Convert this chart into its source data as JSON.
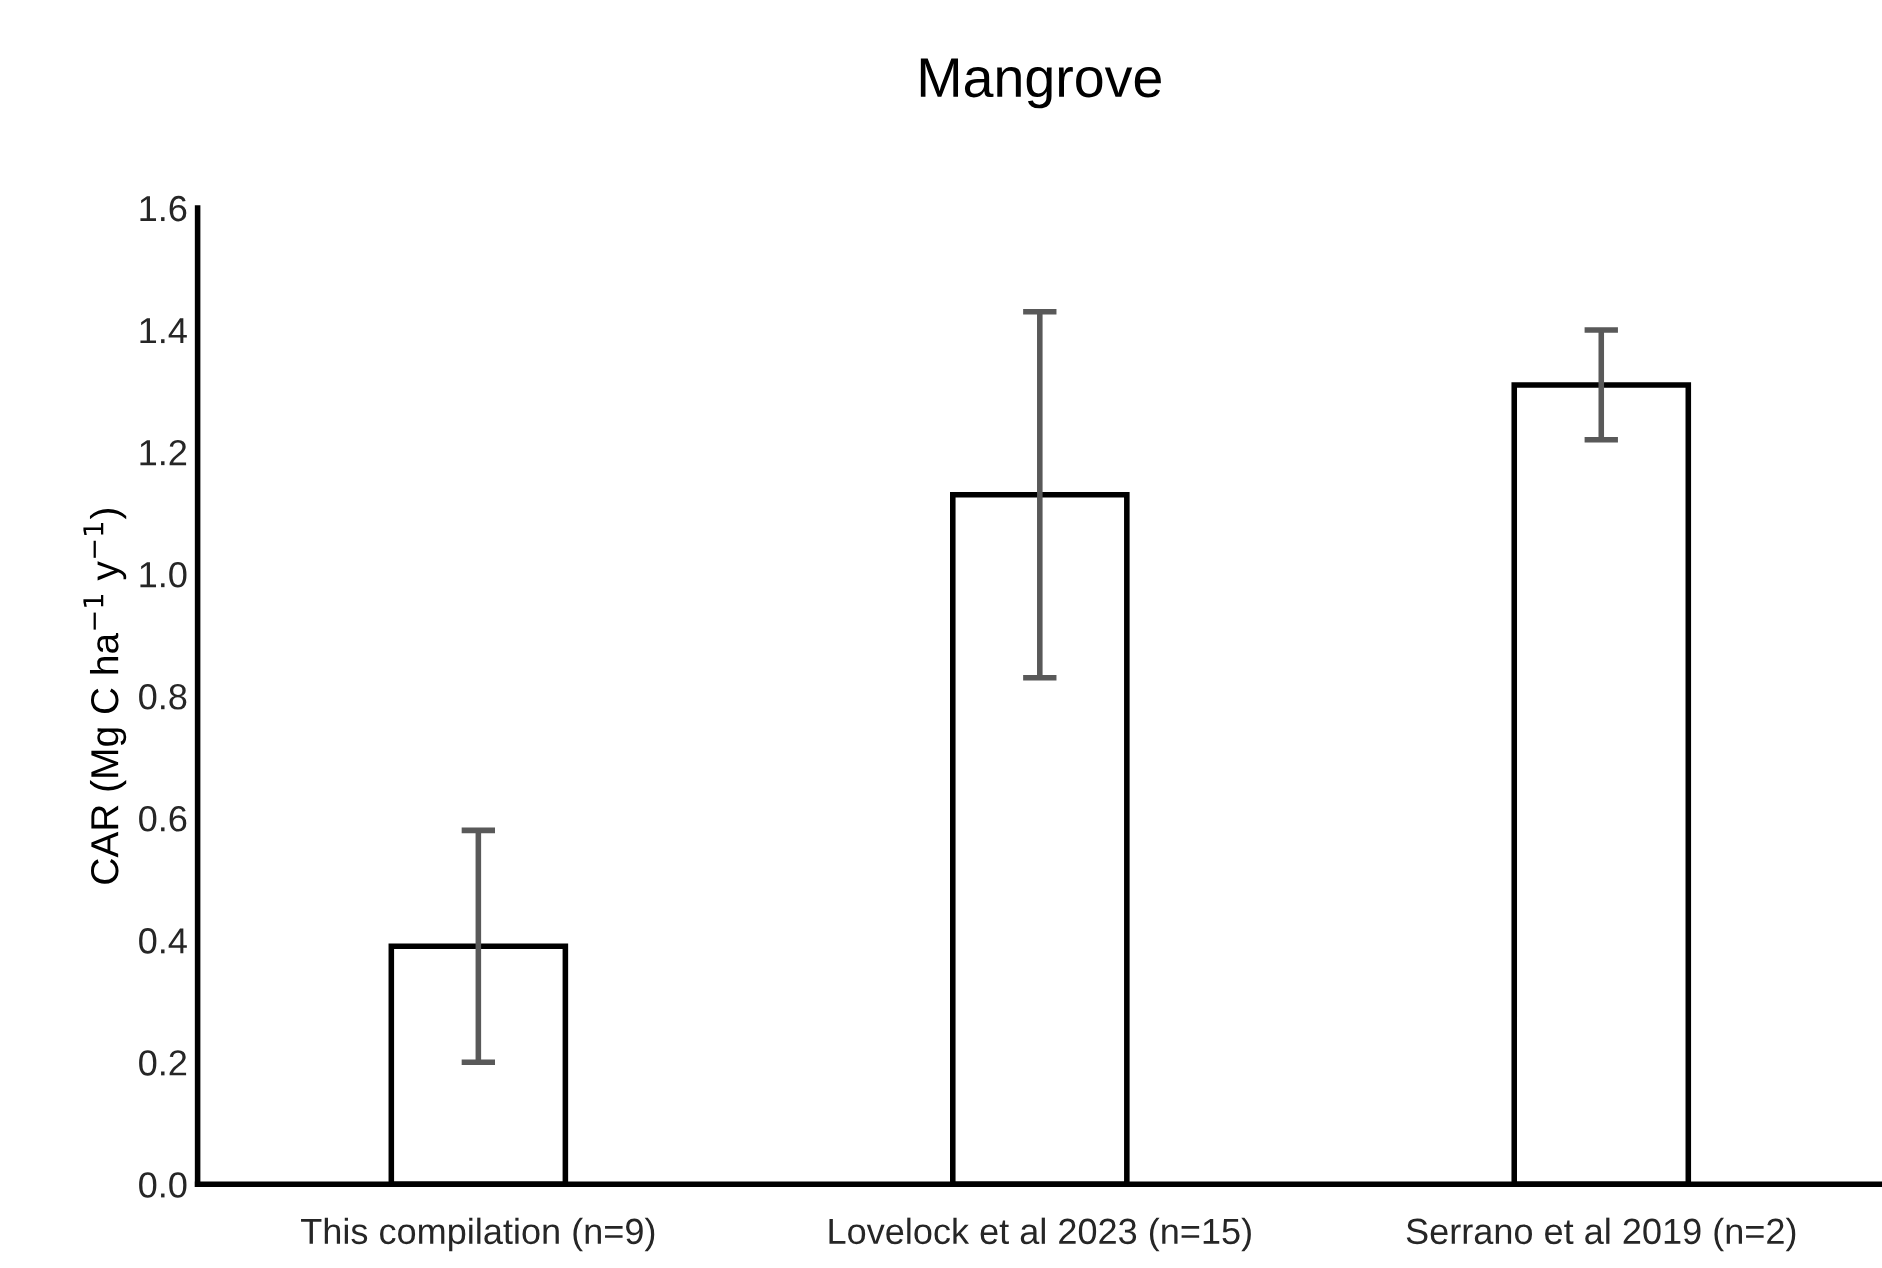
{
  "chart_data": {
    "type": "bar",
    "title": "Mangrove",
    "ylabel": "CAR (Mg C ha$^{−1}$ y$^{−1}$)",
    "categories": [
      "This compilation (n=9)",
      "Lovelock et al 2023 (n=15)",
      "Serrano et al 2019 (n=2)"
    ],
    "values": [
      0.39,
      1.13,
      1.31
    ],
    "errors": [
      0.19,
      0.3,
      0.09
    ],
    "color": "#ffffff",
    "ylim": [
      0,
      1.6
    ],
    "yticks": [
      {
        "value": 0,
        "label": "0.0"
      },
      {
        "value": 0.2,
        "label": "0.2"
      },
      {
        "value": 0.4,
        "label": "0.4"
      },
      {
        "value": 0.6,
        "label": "0.6"
      },
      {
        "value": 0.8,
        "label": "0.8"
      },
      {
        "value": 1.0,
        "label": "1.0"
      },
      {
        "value": 1.2,
        "label": "1.2"
      },
      {
        "value": 1.4,
        "label": "1.4"
      },
      {
        "value": 1.6,
        "label": "1.6"
      }
    ],
    "grid": false
  }
}
